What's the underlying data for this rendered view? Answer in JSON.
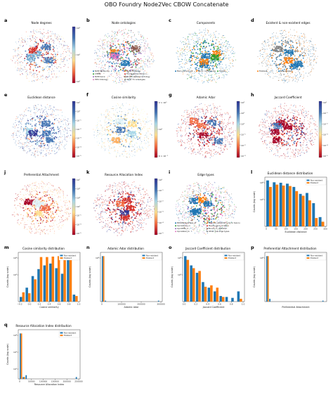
{
  "title": "OBO Foundry Node2Vec CBOW Concatenate",
  "colors": {
    "blue": "#1f77b4",
    "orange": "#ff7f0e",
    "gray": "#7f7f7f"
  },
  "embeddings": [
    {
      "letter": "a",
      "title": "Node degrees",
      "kind": "colorbar",
      "palette": "rdylbu",
      "cbar_ticks": [
        "10²",
        "10¹",
        "10⁰"
      ]
    },
    {
      "letter": "b",
      "title": "Node ontologies",
      "kind": "legend",
      "palette": "multi",
      "legend": [
        "NCBI Taxonomy",
        "Gene Ontology",
        "CHEBI",
        "Foundational Model o...",
        "NCBI Gene",
        "Mondo Disease Ontology",
        "HPO Ontology",
        "Other 31 ontologies"
      ],
      "legend_colors": [
        "#1f77b4",
        "#ff7f0e",
        "#2ca02c",
        "#d62728",
        "#9467bd",
        "#8c564b",
        "#e377c2",
        "#7f7f7f"
      ]
    },
    {
      "letter": "c",
      "title": "Components",
      "kind": "legend",
      "palette": "components",
      "legend": [
        "Main component",
        "Minor components",
        "Tuples"
      ],
      "legend_colors": [
        "#1f77b4",
        "#ff7f0e",
        "#2ca02c"
      ]
    },
    {
      "letter": "d",
      "title": "Existent & non-existent edges",
      "kind": "legend",
      "palette": "edges",
      "legend": [
        "Existent",
        "Non-existent"
      ],
      "legend_colors": [
        "#ff7f0e",
        "#1f77b4"
      ]
    },
    {
      "letter": "e",
      "title": "Euclidean distance",
      "kind": "colorbar",
      "palette": "blue_heavy",
      "cbar_ticks": [
        "10¹",
        "10⁰",
        "10⁻¹",
        "10⁻²",
        "10⁻³",
        "10⁻⁴",
        "10⁻⁵"
      ]
    },
    {
      "letter": "f",
      "title": "Cosine similarity",
      "kind": "colorbar",
      "palette": "yellow_mix",
      "cbar_ticks": [
        "2 × 10⁰",
        "10⁰",
        "6 × 10⁻¹"
      ]
    },
    {
      "letter": "g",
      "title": "Adamic Adar",
      "kind": "colorbar",
      "palette": "red_heavy",
      "cbar_ticks": [
        "10²",
        "10¹",
        "10⁰",
        "10⁻¹",
        "10⁻²",
        "10⁻³"
      ]
    },
    {
      "letter": "h",
      "title": "Jaccard Coefficient",
      "kind": "colorbar",
      "palette": "red_heavy",
      "cbar_ticks": [
        "10⁰",
        "10⁻¹",
        "10⁻²",
        "10⁻³",
        "10⁻⁴",
        "10⁻⁵"
      ]
    },
    {
      "letter": "j",
      "title": "Preferential Attachment",
      "kind": "colorbar",
      "palette": "orange_heavy",
      "cbar_ticks": [
        "10⁷",
        "10⁵",
        "10³",
        "10¹",
        "10⁻¹",
        "10⁻³",
        "10⁻⁵"
      ]
    },
    {
      "letter": "k",
      "title": "Resource Allocation Index",
      "kind": "colorbar",
      "palette": "red_heavy",
      "cbar_ticks": [
        "10⁰",
        "10⁻¹",
        "10⁻²",
        "10⁻³",
        "10⁻⁴",
        "10⁻⁵"
      ]
    },
    {
      "letter": "i",
      "title": "Edge types",
      "kind": "legend",
      "palette": "multi",
      "legend": [
        "BIOLINK:subclass_of",
        "OBO:RO_0002160 (only in taxon)",
        "bp:realized_in",
        "Mondo:gene_location",
        "bp:CHEBI_in",
        "Mondo:ro_0002192",
        "bp:related_to",
        "Other 414 edge types"
      ],
      "legend_colors": [
        "#1f77b4",
        "#ff7f0e",
        "#2ca02c",
        "#d62728",
        "#9467bd",
        "#8c564b",
        "#e377c2",
        "#7f7f7f"
      ]
    }
  ],
  "chart_data": [
    {
      "letter": "l",
      "type": "bar",
      "title": "Euclidean distance distribution",
      "xlabel": "Euclidean distance",
      "ylabel": "Counts (log scale)",
      "legend": [
        "Non-existent",
        "Existent"
      ],
      "log_ticks": [
        "10⁴",
        "10³"
      ],
      "xticks": [
        "0",
        "50",
        "100",
        "150",
        "200",
        "250",
        "300"
      ],
      "series": [
        {
          "name": "Non-existent",
          "values": [
            0.99,
            0.95,
            0.94,
            0.92,
            0.85,
            0.7,
            0.72,
            0.5,
            0.2
          ]
        },
        {
          "name": "Existent",
          "values": [
            0.85,
            0.9,
            0.88,
            0.87,
            0.76,
            0.66,
            0.56,
            0.18,
            0.1
          ]
        }
      ]
    },
    {
      "letter": "m",
      "type": "bar",
      "title": "Cosine similarity distribution",
      "xlabel": "Cosine similarity",
      "ylabel": "Counts (log scale)",
      "legend": [
        "Non-existent",
        "Existent"
      ],
      "log_ticks": [
        "10⁴",
        "10³"
      ],
      "xticks": [
        "−0.2",
        "0.0",
        "0.2",
        "0.4",
        "0.6",
        "0.8",
        "1.0"
      ],
      "series": [
        {
          "name": "Non-existent",
          "values": [
            0.1,
            0.3,
            0.55,
            0.7,
            0.78,
            0.82,
            0.72,
            0.6,
            0.98,
            0.15
          ]
        },
        {
          "name": "Existent",
          "values": [
            0.2,
            0.18,
            0.48,
            0.96,
            0.96,
            0.97,
            0.98,
            0.96,
            0.95,
            0.12
          ]
        }
      ]
    },
    {
      "letter": "n",
      "type": "bar",
      "title": "Adamic Adar distribution",
      "xlabel": "Adamic Adar",
      "ylabel": "Counts (log scale)",
      "legend": [
        "Non-existent",
        "Existent"
      ],
      "log_ticks": [
        "10⁴"
      ],
      "xticks": [
        "0",
        "100000",
        "200000",
        "300000"
      ],
      "series": [
        {
          "name": "Non-existent",
          "values": [
            0.98,
            0.02,
            0,
            0,
            0,
            0,
            0,
            0,
            0,
            0,
            0,
            0,
            0,
            0,
            0,
            0,
            0,
            0,
            0,
            0.02
          ]
        },
        {
          "name": "Existent",
          "values": [
            0.98,
            0,
            0,
            0,
            0,
            0,
            0,
            0,
            0,
            0,
            0,
            0,
            0,
            0,
            0,
            0,
            0,
            0,
            0,
            0
          ]
        }
      ]
    },
    {
      "letter": "o",
      "type": "bar",
      "title": "Jaccard Coefficient distribution",
      "xlabel": "Jaccard Coefficient",
      "ylabel": "Counts (log scale)",
      "legend": [
        "Non-existent",
        "Existent"
      ],
      "log_ticks": [
        "10⁴",
        "10³"
      ],
      "xticks": [
        "0.0",
        "0.2",
        "0.4",
        "0.6",
        "0.8",
        "1.0"
      ],
      "series": [
        {
          "name": "Non-existent",
          "values": [
            0.98,
            0.78,
            0.62,
            0.42,
            0.3,
            0.22,
            0.12,
            0.1,
            0.08,
            0.22
          ]
        },
        {
          "name": "Existent",
          "values": [
            0.9,
            0.72,
            0.66,
            0.32,
            0.35,
            0.3,
            0.1,
            0.0,
            0.0,
            0.06
          ]
        }
      ]
    },
    {
      "letter": "p",
      "type": "bar",
      "title": "Preferential Attachment distribution",
      "xlabel": "Preferential Attachment",
      "ylabel": "Counts (log scale)",
      "legend": [
        "Non-existent",
        "Existent"
      ],
      "log_ticks": [
        "10⁴"
      ],
      "xticks": [],
      "series": [
        {
          "name": "Non-existent",
          "values": [
            0.98,
            0.06,
            0,
            0,
            0,
            0,
            0,
            0,
            0,
            0,
            0,
            0,
            0,
            0,
            0,
            0,
            0,
            0,
            0,
            0.02
          ]
        },
        {
          "name": "Existent",
          "values": [
            0.98,
            0,
            0,
            0,
            0,
            0,
            0,
            0,
            0,
            0,
            0,
            0,
            0,
            0,
            0,
            0,
            0,
            0,
            0,
            0
          ]
        }
      ]
    },
    {
      "letter": "q",
      "type": "bar",
      "title": "Resource Allocation Index distribution",
      "xlabel": "Resource Allocation Index",
      "ylabel": "Counts (log scale)",
      "legend": [
        "Non-existent",
        "Existent"
      ],
      "log_ticks": [
        "10⁴",
        "10³",
        "10²"
      ],
      "xticks": [
        "0",
        "50000",
        "100000",
        "150000",
        "200000",
        "250000"
      ],
      "series": [
        {
          "name": "Non-existent",
          "values": [
            0.98,
            0.04,
            0.08,
            0,
            0,
            0,
            0,
            0,
            0,
            0,
            0,
            0,
            0,
            0,
            0,
            0,
            0,
            0,
            0,
            0.04
          ]
        },
        {
          "name": "Existent",
          "values": [
            0.98,
            0.04,
            0,
            0,
            0,
            0,
            0,
            0,
            0,
            0,
            0,
            0,
            0,
            0,
            0,
            0,
            0,
            0,
            0,
            0
          ]
        }
      ]
    }
  ]
}
